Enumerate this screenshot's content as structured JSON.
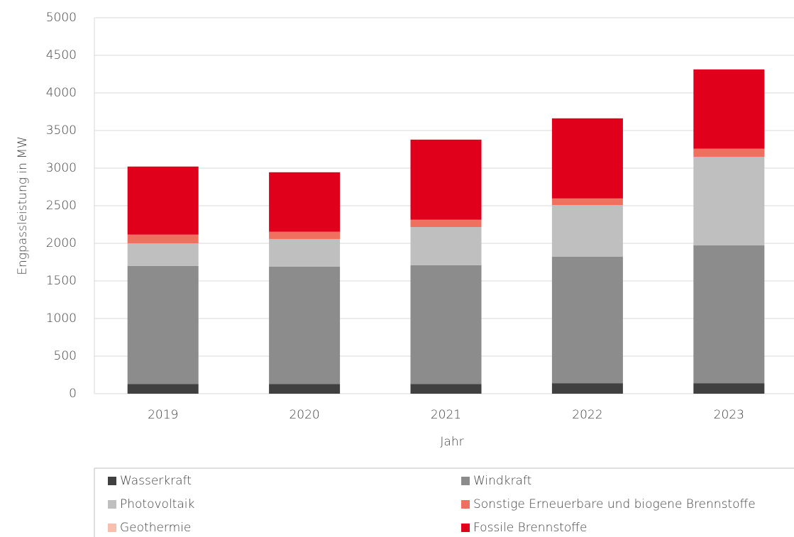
{
  "chart_data": {
    "type": "stacked_bar",
    "y_label": "Engpassleistung in MW",
    "x_label": "Jahr",
    "categories": [
      "2019",
      "2020",
      "2021",
      "2022",
      "2023"
    ],
    "series": [
      {
        "name": "Wasserkraft",
        "color": "#404040",
        "values": [
          130,
          130,
          130,
          140,
          140
        ]
      },
      {
        "name": "Windkraft",
        "color": "#8c8c8c",
        "values": [
          1570,
          1559,
          1578,
          1681,
          1832
        ]
      },
      {
        "name": "Photovoltaik",
        "color": "#bfbfbf",
        "values": [
          300,
          368,
          509,
          688,
          1179
        ]
      },
      {
        "name": "Sonstige Erneuerbare und biogene Brennstoffe",
        "color": "#f07060",
        "values": [
          113,
          94,
          94,
          85,
          104
        ]
      },
      {
        "name": "Geothermie",
        "color": "#f8bfae",
        "values": [
          2,
          2,
          2,
          2,
          2
        ]
      },
      {
        "name": "Fossile Brennstoffe",
        "color": "#e0001b",
        "values": [
          906,
          792,
          1066,
          1066,
          1056
        ]
      }
    ],
    "ylim": [
      0,
      5000
    ],
    "yticks": [
      0,
      500,
      1000,
      1500,
      2000,
      2500,
      3000,
      3500,
      4000,
      4500,
      5000
    ],
    "grid": true
  }
}
